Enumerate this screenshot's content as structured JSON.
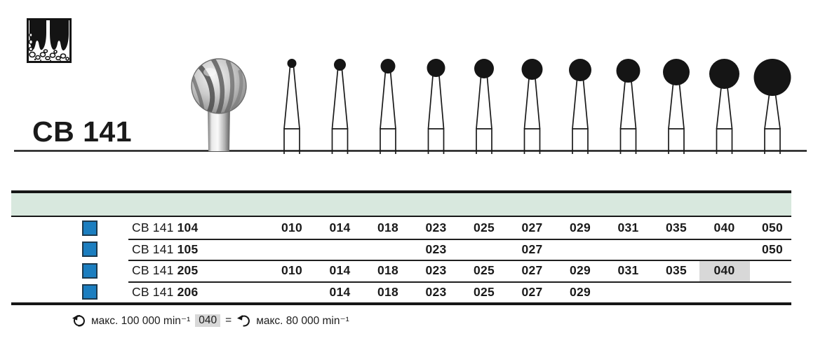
{
  "page": {
    "title_code": "CB 141"
  },
  "pictogram": {
    "meaning": "tooth-roots-bone-surgery-pictogram"
  },
  "bur_row": {
    "description": "round carbide bur head sizes, small to large",
    "sizes": [
      10,
      14,
      18,
      23,
      25,
      27,
      29,
      31,
      35,
      40,
      50
    ]
  },
  "table": {
    "columns": [
      "010",
      "014",
      "018",
      "023",
      "025",
      "027",
      "029",
      "031",
      "035",
      "040",
      "050"
    ],
    "rows": [
      {
        "prefix": "CB 141",
        "code": "104",
        "cells": [
          "010",
          "014",
          "018",
          "023",
          "025",
          "027",
          "029",
          "031",
          "035",
          "040",
          "050"
        ],
        "highlight": []
      },
      {
        "prefix": "CB 141",
        "code": "105",
        "cells": [
          "",
          "",
          "",
          "023",
          "",
          "027",
          "",
          "",
          "",
          "",
          "050"
        ],
        "highlight": []
      },
      {
        "prefix": "CB 141",
        "code": "205",
        "cells": [
          "010",
          "014",
          "018",
          "023",
          "025",
          "027",
          "029",
          "031",
          "035",
          "040",
          ""
        ],
        "highlight": [
          9
        ]
      },
      {
        "prefix": "CB 141",
        "code": "206",
        "cells": [
          "",
          "014",
          "018",
          "023",
          "025",
          "027",
          "029",
          "",
          "",
          "",
          ""
        ],
        "highlight": []
      }
    ],
    "colors": {
      "header_band": "#d8e8de",
      "bullet_blue": "#1b7ec0",
      "highlight_gray": "#d8d8d8"
    }
  },
  "footnote": {
    "left_speed": "макс. 100 000 min⁻¹",
    "highlight_size": "040",
    "equals": "=",
    "right_speed": "макс. 80 000 min⁻¹"
  }
}
